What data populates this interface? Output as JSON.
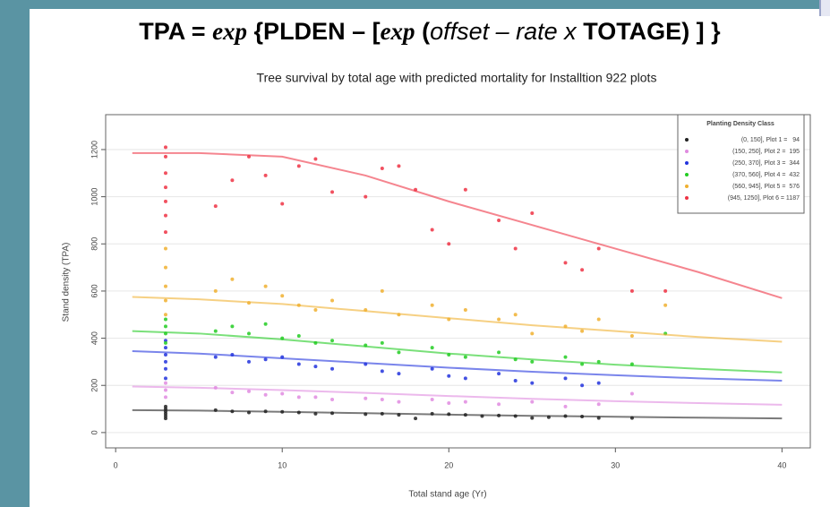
{
  "formula": [
    "TPA = ",
    "exp",
    " {PLDEN – [",
    "exp",
    " (",
    "offset",
    " – ",
    "rate",
    " x ",
    "TOTAGE) ] }"
  ],
  "chart_data": {
    "type": "scatter",
    "title": "Tree survival by total age with predicted mortality for Installtion 922 plots",
    "x_label": "Total stand age (Yr)",
    "y_label": "Stand density (TPA)",
    "legend_title": "Planting Density Class",
    "legend": "top-right",
    "grid": true,
    "xlim": [
      -0.6,
      41.7
    ],
    "ylim": [
      -65,
      1348
    ],
    "xticks": [
      0,
      10,
      20,
      30,
      40
    ],
    "yticks": [
      0,
      200,
      400,
      600,
      800,
      1000,
      1200
    ],
    "series": [
      {
        "name": "(0, 150], Plot 1 =   94",
        "color": "#222222",
        "x": [
          3,
          3,
          3,
          3,
          3,
          3,
          6,
          7,
          8,
          9,
          10,
          11,
          12,
          13,
          15,
          16,
          17,
          18,
          19,
          20,
          21,
          22,
          23,
          24,
          25,
          26,
          27,
          28,
          29,
          31
        ],
        "values": [
          60,
          70,
          80,
          90,
          100,
          110,
          95,
          90,
          85,
          90,
          88,
          85,
          80,
          82,
          78,
          80,
          75,
          60,
          80,
          78,
          75,
          70,
          72,
          70,
          62,
          65,
          70,
          68,
          62,
          62
        ],
        "fit": {
          "x": [
            1,
            5,
            10,
            15,
            20,
            25,
            30,
            35,
            40
          ],
          "values": [
            95,
            93,
            88,
            82,
            76,
            71,
            67,
            63,
            60
          ]
        }
      },
      {
        "name": "(150, 250], Plot 2 =  195",
        "color": "#e08be0",
        "x": [
          3,
          3,
          3,
          6,
          7,
          8,
          9,
          10,
          11,
          12,
          13,
          15,
          16,
          17,
          19,
          20,
          21,
          23,
          25,
          27,
          29,
          31
        ],
        "values": [
          150,
          180,
          210,
          190,
          170,
          175,
          160,
          165,
          150,
          150,
          140,
          145,
          140,
          130,
          140,
          125,
          130,
          120,
          130,
          110,
          120,
          165
        ],
        "fit": {
          "x": [
            1,
            5,
            10,
            15,
            20,
            25,
            30,
            35,
            40
          ],
          "values": [
            195,
            190,
            180,
            168,
            155,
            143,
            133,
            125,
            118
          ]
        }
      },
      {
        "name": "(250, 370], Plot 3 =  344",
        "color": "#2233dd",
        "x": [
          3,
          3,
          3,
          3,
          3,
          3,
          6,
          7,
          8,
          9,
          10,
          11,
          12,
          13,
          15,
          16,
          17,
          19,
          20,
          21,
          23,
          24,
          25,
          27,
          28,
          29
        ],
        "values": [
          230,
          270,
          300,
          330,
          360,
          390,
          320,
          330,
          300,
          310,
          320,
          290,
          280,
          270,
          290,
          260,
          250,
          270,
          240,
          230,
          250,
          220,
          210,
          230,
          200,
          210
        ],
        "fit": {
          "x": [
            1,
            5,
            10,
            15,
            20,
            25,
            30,
            35,
            40
          ],
          "values": [
            345,
            335,
            315,
            295,
            275,
            258,
            243,
            230,
            220
          ]
        }
      },
      {
        "name": "(370, 560], Plot 4 =  432",
        "color": "#22cc22",
        "x": [
          3,
          3,
          3,
          3,
          6,
          7,
          8,
          9,
          10,
          11,
          12,
          13,
          15,
          16,
          17,
          19,
          20,
          21,
          23,
          24,
          25,
          27,
          28,
          29,
          31,
          33
        ],
        "values": [
          380,
          420,
          450,
          480,
          430,
          450,
          420,
          460,
          400,
          410,
          380,
          390,
          370,
          380,
          340,
          360,
          330,
          320,
          340,
          310,
          300,
          320,
          290,
          300,
          290,
          420
        ],
        "fit": {
          "x": [
            1,
            5,
            10,
            15,
            20,
            25,
            30,
            35,
            40
          ],
          "values": [
            430,
            420,
            395,
            365,
            335,
            310,
            288,
            270,
            255
          ]
        }
      },
      {
        "name": "(560, 945], Plot 5 =  576",
        "color": "#f0b030",
        "x": [
          3,
          3,
          3,
          3,
          3,
          6,
          7,
          8,
          9,
          10,
          11,
          12,
          13,
          15,
          16,
          17,
          19,
          20,
          21,
          23,
          24,
          25,
          27,
          28,
          29,
          31,
          33
        ],
        "values": [
          500,
          560,
          620,
          700,
          780,
          600,
          650,
          550,
          620,
          580,
          540,
          520,
          560,
          520,
          600,
          500,
          540,
          480,
          520,
          480,
          500,
          420,
          450,
          430,
          480,
          410,
          540
        ],
        "fit": {
          "x": [
            1,
            5,
            10,
            15,
            20,
            25,
            30,
            35,
            40
          ],
          "values": [
            575,
            565,
            545,
            515,
            485,
            455,
            430,
            405,
            385
          ]
        }
      },
      {
        "name": "(945, 1250], Plot 6 = 1187",
        "color": "#ee3344",
        "x": [
          3,
          3,
          3,
          3,
          3,
          3,
          3,
          6,
          7,
          8,
          9,
          10,
          11,
          12,
          13,
          15,
          16,
          17,
          18,
          19,
          20,
          21,
          23,
          24,
          25,
          27,
          28,
          29,
          31,
          33
        ],
        "values": [
          850,
          920,
          980,
          1040,
          1100,
          1170,
          1210,
          960,
          1070,
          1170,
          1090,
          970,
          1130,
          1160,
          1020,
          1000,
          1120,
          1130,
          1030,
          860,
          800,
          1030,
          900,
          780,
          930,
          720,
          690,
          780,
          600,
          600
        ],
        "fit": {
          "x": [
            1,
            5,
            10,
            15,
            20,
            25,
            30,
            35,
            40
          ],
          "values": [
            1185,
            1185,
            1170,
            1090,
            980,
            880,
            780,
            680,
            570
          ]
        }
      }
    ]
  }
}
